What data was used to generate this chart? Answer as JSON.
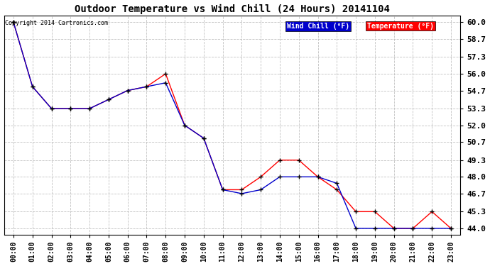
{
  "title": "Outdoor Temperature vs Wind Chill (24 Hours) 20141104",
  "copyright": "Copyright 2014 Cartronics.com",
  "x_labels": [
    "00:00",
    "01:00",
    "02:00",
    "03:00",
    "04:00",
    "05:00",
    "06:00",
    "07:00",
    "08:00",
    "09:00",
    "10:00",
    "11:00",
    "12:00",
    "13:00",
    "14:00",
    "15:00",
    "16:00",
    "17:00",
    "18:00",
    "19:00",
    "20:00",
    "21:00",
    "22:00",
    "23:00"
  ],
  "temperature": [
    60.0,
    55.0,
    53.3,
    53.3,
    53.3,
    54.0,
    54.7,
    55.0,
    56.0,
    52.0,
    51.0,
    47.0,
    47.0,
    48.0,
    49.3,
    49.3,
    48.0,
    47.0,
    45.3,
    45.3,
    44.0,
    44.0,
    45.3,
    44.0
  ],
  "wind_chill": [
    60.0,
    55.0,
    53.3,
    53.3,
    53.3,
    54.0,
    54.7,
    55.0,
    55.3,
    52.0,
    51.0,
    47.0,
    46.7,
    47.0,
    48.0,
    48.0,
    48.0,
    47.5,
    44.0,
    44.0,
    44.0,
    44.0,
    44.0,
    44.0
  ],
  "temp_color": "#ff0000",
  "wind_chill_color": "#0000cc",
  "ylim_min": 44.0,
  "ylim_max": 60.0,
  "y_ticks": [
    44.0,
    45.3,
    46.7,
    48.0,
    49.3,
    50.7,
    52.0,
    53.3,
    54.7,
    56.0,
    57.3,
    58.7,
    60.0
  ],
  "background_color": "#ffffff",
  "grid_color": "#bbbbbb",
  "legend_wind_chill_bg": "#0000cc",
  "legend_temp_bg": "#ff0000",
  "legend_wind_chill_text": "Wind Chill (°F)",
  "legend_temp_text": "Temperature (°F)"
}
